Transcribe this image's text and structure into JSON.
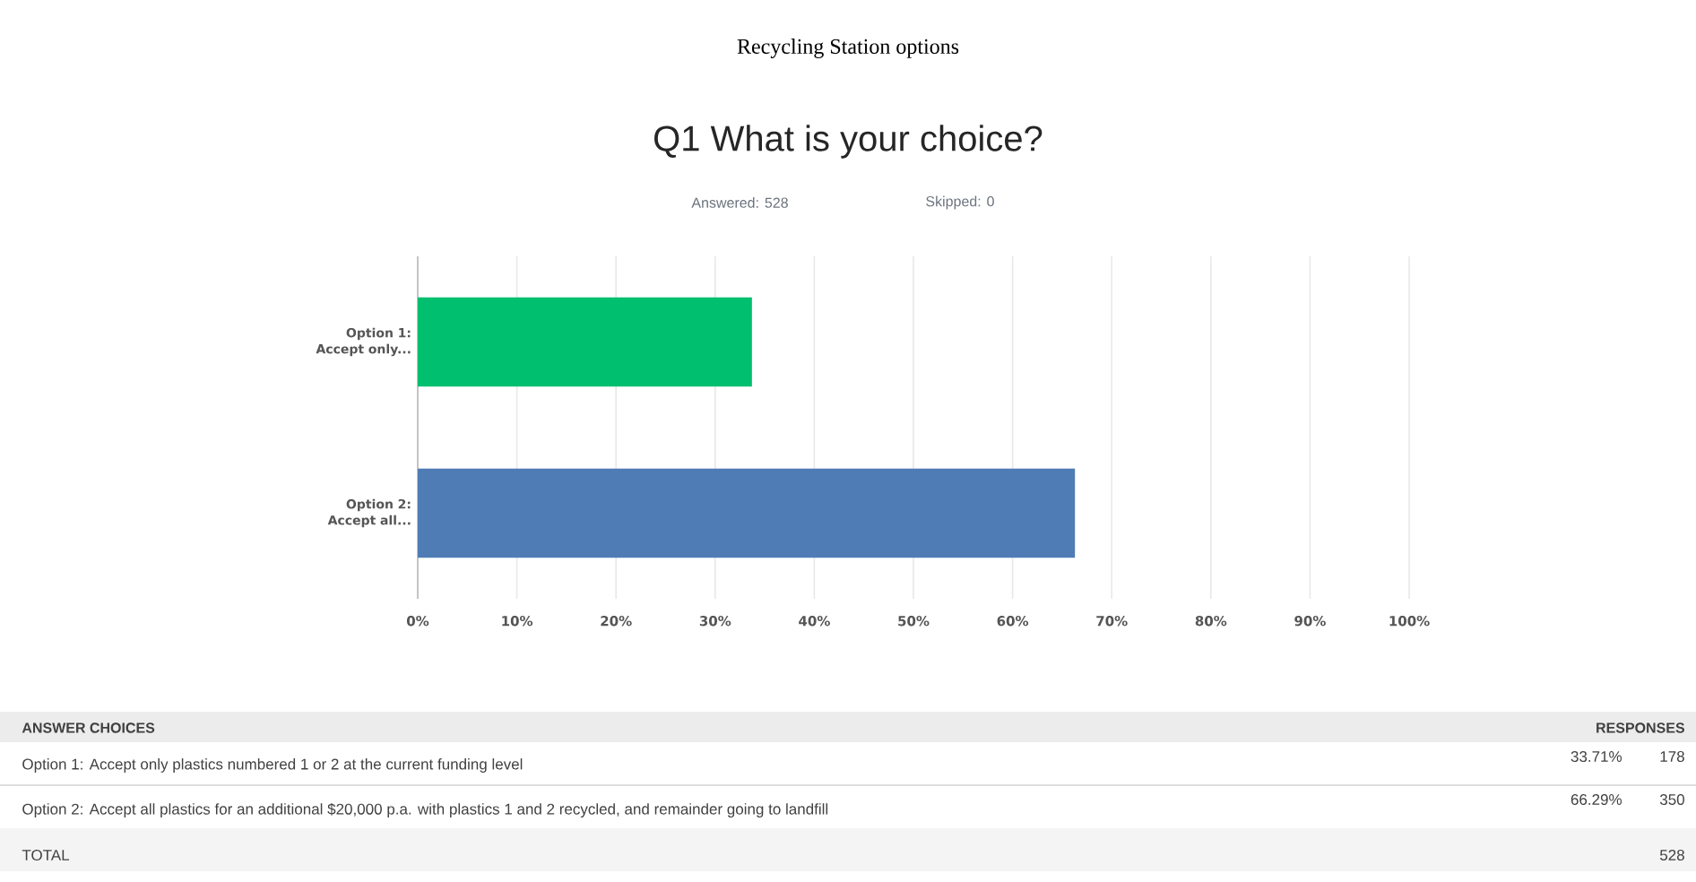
{
  "chart_data": {
    "type": "bar",
    "orientation": "horizontal",
    "title": "Recycling Station options",
    "subtitle": "Q1 What is your choice?",
    "categories": [
      "Option 1: Accept only...",
      "Option 2: Accept all..."
    ],
    "values": [
      33.71,
      66.29
    ],
    "colors": [
      "#00bf6f",
      "#507cb6"
    ],
    "xlim": [
      0,
      100
    ],
    "xticks": [
      {
        "value": 0,
        "label": "0%"
      },
      {
        "value": 10,
        "label": "10%"
      },
      {
        "value": 20,
        "label": "20%"
      },
      {
        "value": 30,
        "label": "30%"
      },
      {
        "value": 40,
        "label": "40%"
      },
      {
        "value": 50,
        "label": "50%"
      },
      {
        "value": 60,
        "label": "60%"
      },
      {
        "value": 70,
        "label": "70%"
      },
      {
        "value": 80,
        "label": "80%"
      },
      {
        "value": 90,
        "label": "90%"
      },
      {
        "value": 100,
        "label": "100%"
      }
    ],
    "grid": "x",
    "annotations": [
      "Answered: 528",
      "Skipped: 0",
      "ANSWER CHOICES",
      "RESPONSES",
      "Option 1: Accept only plastics numbered 1 or 2 at the current funding level",
      "33.71%",
      "178",
      "Option 2: Accept all plastics for an additional $20,000 p.a. with plastics 1 and 2 recycled, and remainder going to landfill",
      "66.29%",
      "350",
      "TOTAL",
      "528"
    ]
  }
}
